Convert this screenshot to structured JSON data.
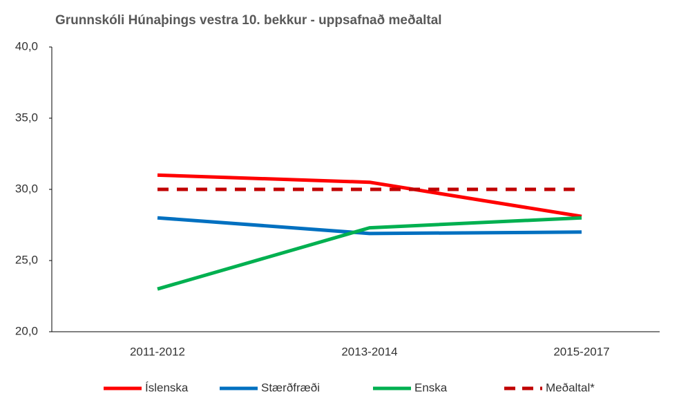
{
  "chart_data": {
    "type": "line",
    "title": "Grunnskóli Húnaþings vestra 10. bekkur - uppsafnað meðaltal",
    "categories": [
      "2011-2012",
      "2013-2014",
      "2015-2017"
    ],
    "series": [
      {
        "name": "Íslenska",
        "color": "#ff0000",
        "values": [
          31.0,
          30.5,
          28.1
        ]
      },
      {
        "name": "Stærðfræði",
        "color": "#0070c0",
        "values": [
          28.0,
          26.9,
          27.0
        ]
      },
      {
        "name": "Enska",
        "color": "#00b050",
        "values": [
          23.0,
          27.3,
          28.0
        ]
      },
      {
        "name": "Meðaltal*",
        "color": "#c00000",
        "dashed": true,
        "values": [
          30.0,
          30.0,
          30.0
        ]
      }
    ],
    "ylim": [
      20,
      40
    ],
    "yticks": [
      {
        "value": 20,
        "label": "20,0"
      },
      {
        "value": 25,
        "label": "25,0"
      },
      {
        "value": 30,
        "label": "30,0"
      },
      {
        "value": 35,
        "label": "35,0"
      },
      {
        "value": 40,
        "label": "40,0"
      }
    ],
    "grid": false,
    "legend": "bottom"
  }
}
